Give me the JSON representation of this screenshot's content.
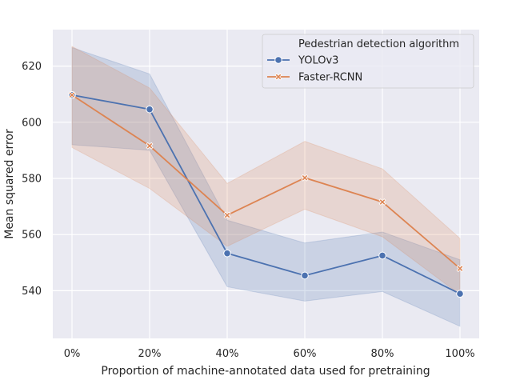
{
  "chart_data": {
    "type": "line",
    "title": "",
    "xlabel": "Proportion of machine-annotated data used for pretraining",
    "ylabel": "Mean squared error",
    "categories": [
      "0%",
      "20%",
      "40%",
      "60%",
      "80%",
      "100%"
    ],
    "ylim": [
      523,
      633
    ],
    "yticks": [
      540,
      560,
      580,
      600,
      620
    ],
    "grid": true,
    "legend": {
      "title": "Pedestrian detection algorithm",
      "position": "top-right"
    },
    "series": [
      {
        "name": "YOLOv3",
        "color": "#4c72b0",
        "marker": "circle",
        "values": [
          609.7,
          604.6,
          553.3,
          545.4,
          552.5,
          538.9
        ],
        "ci_lower": [
          592.0,
          590.0,
          541.4,
          536.3,
          539.7,
          527.3
        ],
        "ci_upper": [
          626.6,
          617.2,
          565.1,
          557.0,
          560.9,
          551.0
        ]
      },
      {
        "name": "Faster-RCNN",
        "color": "#dd8452",
        "marker": "x",
        "values": [
          609.7,
          591.6,
          566.9,
          580.2,
          571.6,
          547.9
        ],
        "ci_lower": [
          591.0,
          576.4,
          555.8,
          569.0,
          559.2,
          538.6
        ],
        "ci_upper": [
          627.0,
          612.2,
          578.2,
          593.2,
          583.4,
          558.6
        ]
      }
    ]
  }
}
